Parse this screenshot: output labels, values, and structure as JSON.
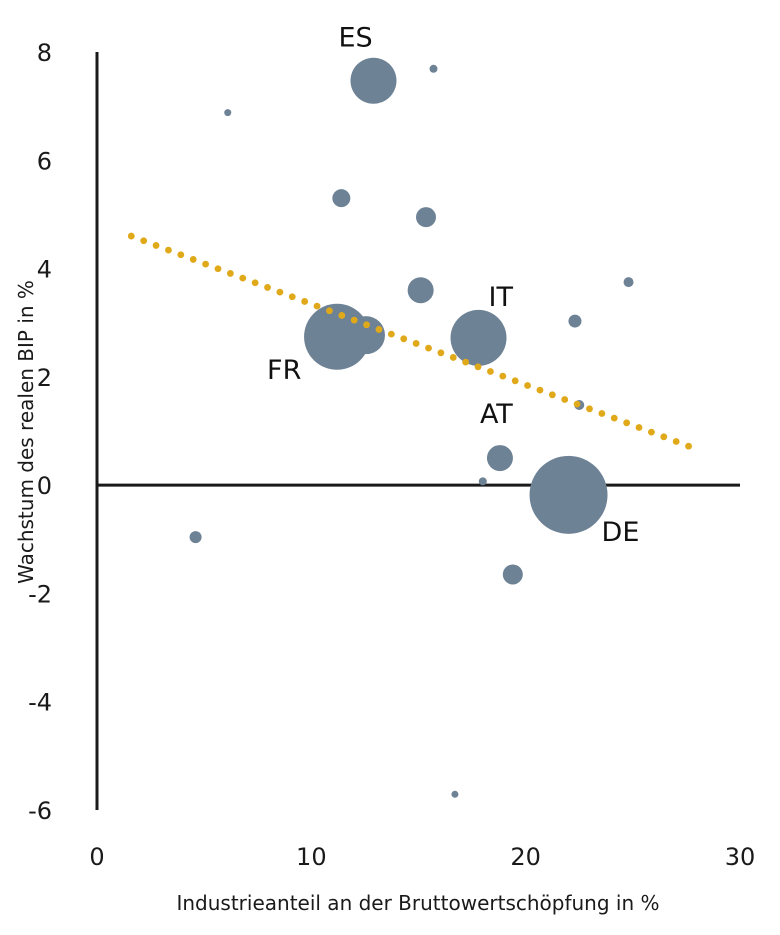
{
  "chart_data": {
    "type": "scatter",
    "subtype": "bubble",
    "title": "",
    "xlabel": "Industrieanteil an der Bruttowertschöpfung in %",
    "ylabel": "Wachstum des realen BIP in %",
    "xlim": [
      0,
      30
    ],
    "ylim": [
      -6,
      8
    ],
    "x_ticks": [
      0,
      10,
      20,
      30
    ],
    "y_ticks": [
      8,
      6,
      4,
      2,
      0,
      -2,
      -4,
      -6
    ],
    "grid": false,
    "legend": "none",
    "colors": {
      "bubble": "#6e8296",
      "trendline": "#e0a91a",
      "axis": "#1a1a1a"
    },
    "points": [
      {
        "label": "ES",
        "x": 12.9,
        "y": 7.47,
        "size": 23
      },
      {
        "label": "",
        "x": 15.7,
        "y": 7.69,
        "size": 4
      },
      {
        "label": "",
        "x": 6.1,
        "y": 6.88,
        "size": 3.5
      },
      {
        "label": "",
        "x": 11.4,
        "y": 5.3,
        "size": 9
      },
      {
        "label": "",
        "x": 15.35,
        "y": 4.95,
        "size": 10
      },
      {
        "label": "",
        "x": 15.1,
        "y": 3.6,
        "size": 13
      },
      {
        "label": "",
        "x": 24.8,
        "y": 3.75,
        "size": 5
      },
      {
        "label": "",
        "x": 12.55,
        "y": 2.77,
        "size": 19
      },
      {
        "label": "FR",
        "x": 11.2,
        "y": 2.74,
        "size": 33
      },
      {
        "label": "IT",
        "x": 17.8,
        "y": 2.72,
        "size": 28
      },
      {
        "label": "",
        "x": 22.3,
        "y": 3.03,
        "size": 6.5
      },
      {
        "label": "",
        "x": 22.5,
        "y": 1.48,
        "size": 5
      },
      {
        "label": "AT",
        "x": 18.8,
        "y": 0.5,
        "size": 13
      },
      {
        "label": "",
        "x": 18.0,
        "y": 0.07,
        "size": 4
      },
      {
        "label": "DE",
        "x": 22.0,
        "y": -0.18,
        "size": 39
      },
      {
        "label": "",
        "x": 19.4,
        "y": -1.65,
        "size": 10
      },
      {
        "label": "",
        "x": 4.6,
        "y": -0.96,
        "size": 6
      },
      {
        "label": "",
        "x": 16.7,
        "y": -5.71,
        "size": 3.5
      }
    ],
    "trendline": {
      "style": "dotted",
      "x": [
        1.6,
        27.6
      ],
      "y": [
        4.6,
        0.72
      ]
    },
    "annotations": [
      {
        "text": "ES",
        "anchor_x": 12.9,
        "anchor_y": 7.47,
        "position": "above"
      },
      {
        "text": "FR",
        "anchor_x": 11.2,
        "anchor_y": 2.74,
        "position": "left-below"
      },
      {
        "text": "IT",
        "anchor_x": 17.8,
        "anchor_y": 2.72,
        "position": "above-right"
      },
      {
        "text": "AT",
        "anchor_x": 18.8,
        "anchor_y": 0.5,
        "position": "above"
      },
      {
        "text": "DE",
        "anchor_x": 22.0,
        "anchor_y": -0.18,
        "position": "right-below"
      }
    ]
  }
}
